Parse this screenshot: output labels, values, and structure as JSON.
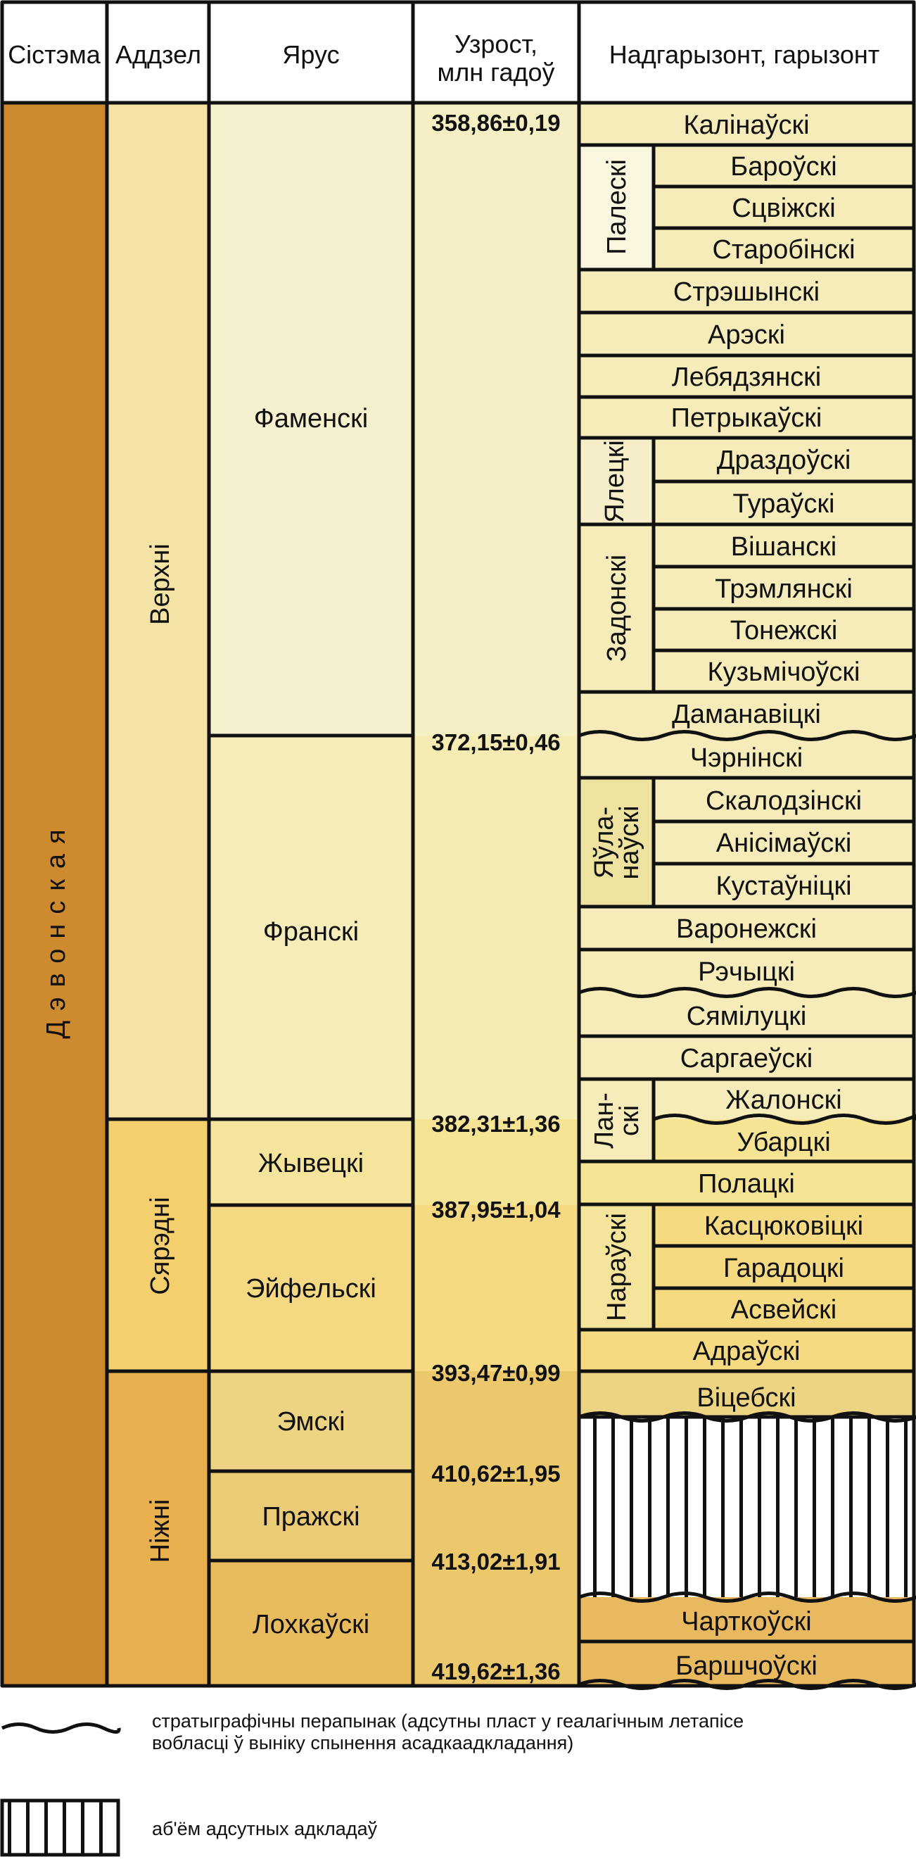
{
  "headers": {
    "system": "Сістэма",
    "series": "Аддзел",
    "stage": "Ярус",
    "age_line1": "Узрост,",
    "age_line2": "млн гадоў",
    "horizon": "Надгарызонт, гарызонт"
  },
  "system": {
    "name": "Дэвонская",
    "color": "#cd8a2e"
  },
  "series": [
    {
      "name": "Верхні",
      "color": "#f4e3a4"
    },
    {
      "name": "Сярэдні",
      "color": "#f4cf6e"
    },
    {
      "name": "Ніжні",
      "color": "#e9b04e"
    }
  ],
  "stages": [
    {
      "name": "Фаменскі",
      "color": "#f5f0ce"
    },
    {
      "name": "Франскі",
      "color": "#f5ecba"
    },
    {
      "name": "Жывецкі",
      "color": "#f5e49b"
    },
    {
      "name": "Эйфельскі",
      "color": "#f5d982"
    },
    {
      "name": "Эмскі",
      "color": "#ecd482"
    },
    {
      "name": "Пражскі",
      "color": "#eccb77"
    },
    {
      "name": "Лохкаўскі",
      "color": "#e8bb5d"
    }
  ],
  "ages": [
    "358,86±0,19",
    "372,15±0,46",
    "382,31±1,36",
    "387,95±1,04",
    "393,47±0,99",
    "410,62±1,95",
    "413,02±1,91",
    "419,62±1,36"
  ],
  "superhorizons": [
    {
      "name": "Палескі",
      "color": "#fbf6df"
    },
    {
      "name": "Ялецкі",
      "color": "#f5eec9"
    },
    {
      "name": "Задонскі",
      "color": "#f5ecba"
    },
    {
      "name_line1": "Яўла-",
      "name_line2": "наўскі",
      "color": "#ede39e"
    },
    {
      "name_line1": "Лан-",
      "name_line2": "скі",
      "color": "#f5ecba"
    },
    {
      "name": "Нараўскі",
      "color": "#f5e49b"
    }
  ],
  "horizons": [
    "Калінаўскі",
    "Бароўскі",
    "Сцвіжскі",
    "Старобінскі",
    "Стрэшынскі",
    "Арэскі",
    "Лебядзянскі",
    "Петрыкаўскі",
    "Драздоўскі",
    "Тураўскі",
    "Вішанскі",
    "Трэмлянскі",
    "Тонежскі",
    "Кузьмічоўскі",
    "Даманавіцкі",
    "Чэрнінскі",
    "Скалодзінскі",
    "Анісімаўскі",
    "Кустаўніцкі",
    "Варонежскі",
    "Рэчыцкі",
    "Сямілуцкі",
    "Саргаеўскі",
    "Жалонскі",
    "Убарцкі",
    "Полацкі",
    "Касцюковіцкі",
    "Гарадоцкі",
    "Асвейскі",
    "Адраўскі",
    "Віцебскі",
    "Чарткоўскі",
    "Баршчоўскі"
  ],
  "legend": {
    "wavy_line1": "стратыграфічны перапынак (адсутны пласт у геалагічным летапісе",
    "wavy_line2": "вобласці ў выніку спынення асадкаадкладання)",
    "hatch": "аб'ём адсутных адкладаў"
  }
}
